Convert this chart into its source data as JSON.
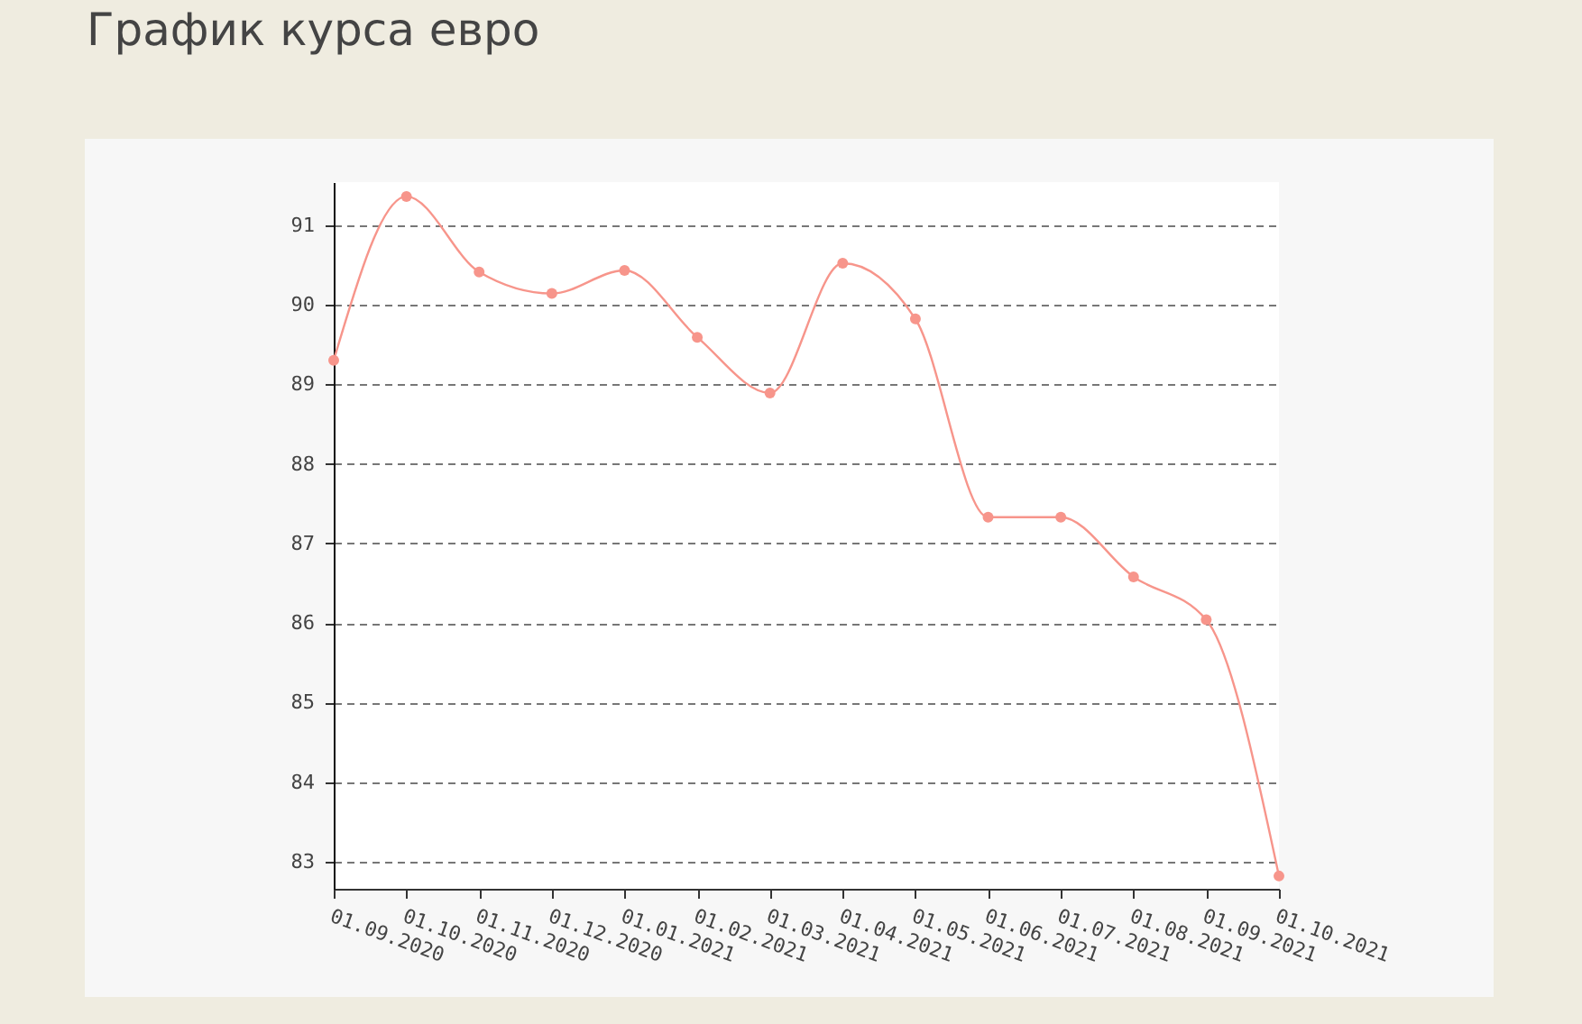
{
  "chart_data": {
    "type": "line",
    "title": "График курса евро",
    "categories": [
      "01.09.2020",
      "01.10.2020",
      "01.11.2020",
      "01.12.2020",
      "01.01.2021",
      "01.02.2021",
      "01.03.2021",
      "01.04.2021",
      "01.05.2021",
      "01.06.2021",
      "01.07.2021",
      "01.08.2021",
      "01.09.2021",
      "01.10.2021"
    ],
    "series": [
      {
        "color": "#f7958b",
        "values": [
          89.3,
          91.36,
          90.41,
          90.14,
          90.43,
          89.59,
          88.89,
          90.52,
          89.82,
          87.33,
          87.33,
          86.58,
          86.04,
          82.82
        ]
      }
    ],
    "ylim": [
      82.66,
      91.54
    ],
    "yticks": [
      83,
      84,
      85,
      86,
      87,
      88,
      89,
      90,
      91
    ],
    "grid": "y",
    "marker": "circle",
    "line_style": "solid",
    "legend": false
  }
}
